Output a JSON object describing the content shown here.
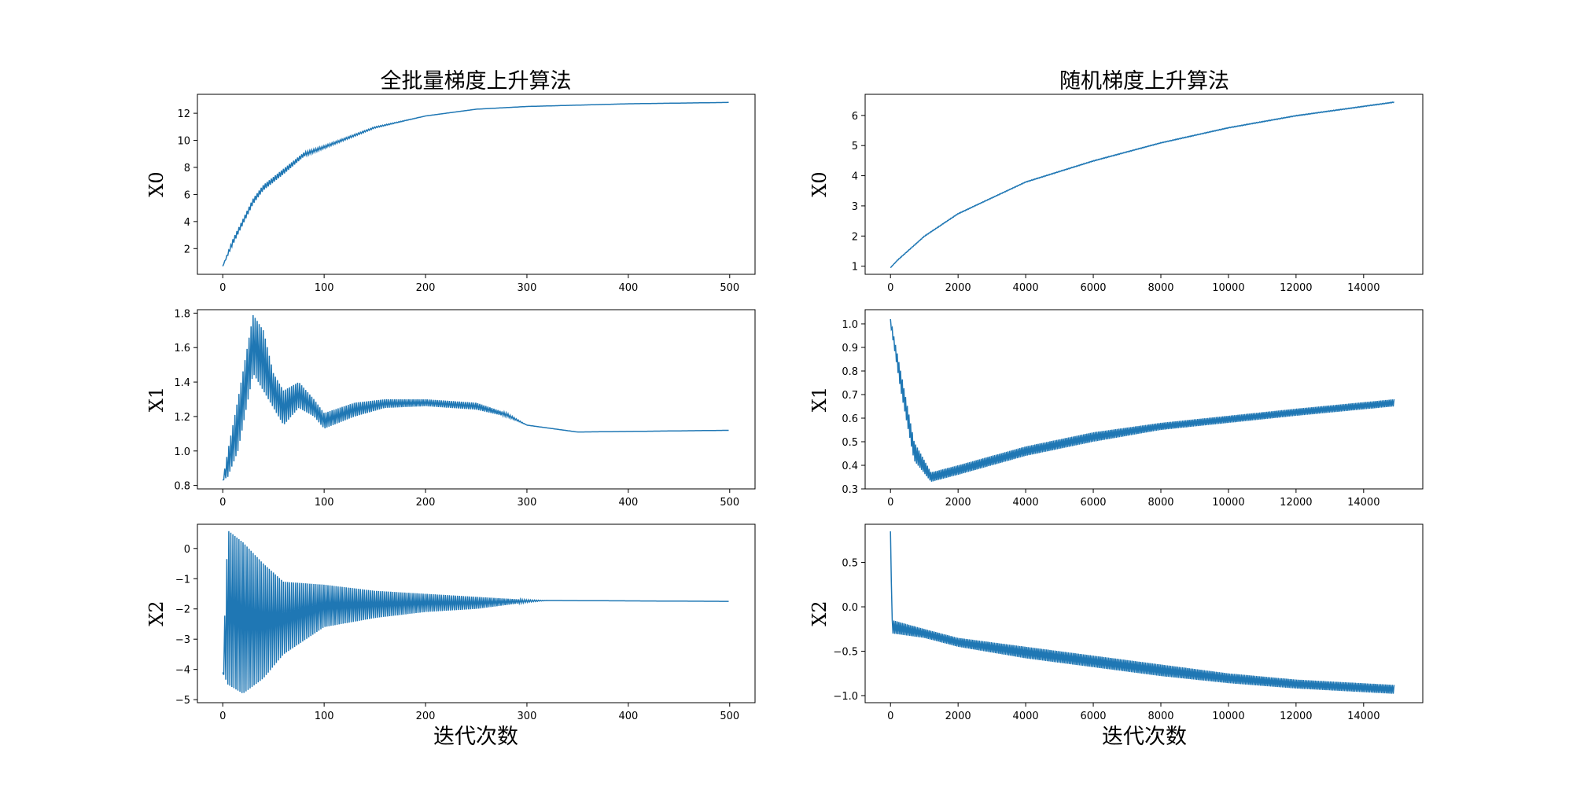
{
  "chart_data": [
    {
      "type": "line",
      "title": "全批量梯度上升算法",
      "ylabel": "X0",
      "xlabel": "",
      "xlim": [
        -25,
        525
      ],
      "ylim": [
        0.1,
        13.4
      ],
      "xticks": [
        0,
        100,
        200,
        300,
        400,
        500
      ],
      "yticks": [
        2,
        4,
        6,
        8,
        10,
        12
      ],
      "ytick_labels": [
        "2",
        "4",
        "6",
        "8",
        "10",
        "12"
      ],
      "color": "#1f77b4",
      "oscillations": 250,
      "x": [
        0,
        10,
        20,
        30,
        40,
        60,
        80,
        100,
        150,
        200,
        250,
        300,
        400,
        499
      ],
      "upper": [
        0.7,
        2.7,
        4.2,
        5.7,
        6.7,
        7.9,
        9.1,
        9.6,
        11.0,
        11.8,
        12.3,
        12.5,
        12.7,
        12.8
      ],
      "lower": [
        0.7,
        2.3,
        3.8,
        5.3,
        6.3,
        7.5,
        8.8,
        9.4,
        10.9,
        11.8,
        12.3,
        12.5,
        12.7,
        12.8
      ]
    },
    {
      "type": "line",
      "title": "随机梯度上升算法",
      "ylabel": "X0",
      "xlabel": "",
      "xlim": [
        -750,
        15750
      ],
      "ylim": [
        0.73,
        6.7
      ],
      "xticks": [
        0,
        2000,
        4000,
        6000,
        8000,
        10000,
        12000,
        14000
      ],
      "yticks": [
        1,
        2,
        3,
        4,
        5,
        6
      ],
      "ytick_labels": [
        "1",
        "2",
        "3",
        "4",
        "5",
        "6"
      ],
      "color": "#1f77b4",
      "oscillations": 300,
      "x": [
        0,
        200,
        1000,
        2000,
        4000,
        6000,
        8000,
        10000,
        12000,
        14900
      ],
      "upper": [
        0.95,
        1.2,
        2.0,
        2.75,
        3.8,
        4.5,
        5.1,
        5.6,
        6.0,
        6.45
      ],
      "lower": [
        0.95,
        1.18,
        1.98,
        2.73,
        3.78,
        4.48,
        5.08,
        5.58,
        5.98,
        6.43
      ]
    },
    {
      "type": "line",
      "title": "",
      "ylabel": "X1",
      "xlabel": "",
      "xlim": [
        -25,
        525
      ],
      "ylim": [
        0.78,
        1.82
      ],
      "xticks": [
        0,
        100,
        200,
        300,
        400,
        500
      ],
      "yticks": [
        0.8,
        1.0,
        1.2,
        1.4,
        1.6,
        1.8
      ],
      "ytick_labels": [
        "0.8",
        "1.0",
        "1.2",
        "1.4",
        "1.6",
        "1.8"
      ],
      "color": "#1f77b4",
      "oscillations": 250,
      "x": [
        0,
        5,
        15,
        30,
        40,
        50,
        60,
        75,
        90,
        100,
        130,
        160,
        200,
        250,
        280,
        300,
        350,
        499
      ],
      "upper": [
        0.83,
        1.0,
        1.3,
        1.79,
        1.7,
        1.45,
        1.35,
        1.4,
        1.3,
        1.22,
        1.28,
        1.3,
        1.3,
        1.28,
        1.22,
        1.15,
        1.11,
        1.12
      ],
      "lower": [
        0.83,
        0.85,
        1.0,
        1.45,
        1.35,
        1.25,
        1.15,
        1.25,
        1.2,
        1.13,
        1.2,
        1.25,
        1.26,
        1.24,
        1.2,
        1.15,
        1.11,
        1.12
      ]
    },
    {
      "type": "line",
      "title": "",
      "ylabel": "X1",
      "xlabel": "",
      "xlim": [
        -750,
        15750
      ],
      "ylim": [
        0.3,
        1.06
      ],
      "xticks": [
        0,
        2000,
        4000,
        6000,
        8000,
        10000,
        12000,
        14000
      ],
      "yticks": [
        0.3,
        0.4,
        0.5,
        0.6,
        0.7,
        0.8,
        0.9,
        1.0
      ],
      "ytick_labels": [
        "0.3",
        "0.4",
        "0.5",
        "0.6",
        "0.7",
        "0.8",
        "0.9",
        "1.0"
      ],
      "color": "#1f77b4",
      "oscillations": 300,
      "x": [
        0,
        300,
        700,
        1200,
        2000,
        4000,
        6000,
        8000,
        10000,
        12000,
        14900
      ],
      "upper": [
        1.02,
        0.8,
        0.5,
        0.37,
        0.4,
        0.48,
        0.54,
        0.58,
        0.61,
        0.64,
        0.68
      ],
      "lower": [
        1.0,
        0.72,
        0.42,
        0.33,
        0.36,
        0.44,
        0.5,
        0.55,
        0.58,
        0.61,
        0.65
      ]
    },
    {
      "type": "line",
      "title": "",
      "ylabel": "X2",
      "xlabel": "迭代次数",
      "xlim": [
        -25,
        525
      ],
      "ylim": [
        -5.1,
        0.8
      ],
      "xticks": [
        0,
        100,
        200,
        300,
        400,
        500
      ],
      "yticks": [
        -5,
        -4,
        -3,
        -2,
        -1,
        0
      ],
      "ytick_labels": [
        "−5",
        "−4",
        "−3",
        "−2",
        "−1",
        "0"
      ],
      "color": "#1f77b4",
      "oscillations": 250,
      "x": [
        0,
        5,
        20,
        40,
        60,
        100,
        150,
        200,
        250,
        300,
        320,
        499
      ],
      "upper": [
        -4.1,
        0.6,
        0.2,
        -0.5,
        -1.1,
        -1.2,
        -1.4,
        -1.5,
        -1.6,
        -1.7,
        -1.72,
        -1.75
      ],
      "lower": [
        -4.1,
        -4.5,
        -4.8,
        -4.3,
        -3.5,
        -2.6,
        -2.3,
        -2.1,
        -2.0,
        -1.78,
        -1.72,
        -1.75
      ]
    },
    {
      "type": "line",
      "title": "",
      "ylabel": "X2",
      "xlabel": "迭代次数",
      "xlim": [
        -750,
        15750
      ],
      "ylim": [
        -1.08,
        0.93
      ],
      "xticks": [
        0,
        2000,
        4000,
        6000,
        8000,
        10000,
        12000,
        14000
      ],
      "yticks": [
        -1.0,
        -0.5,
        0.0,
        0.5
      ],
      "ytick_labels": [
        "−1.0",
        "−0.5",
        "0.0",
        "0.5"
      ],
      "color": "#1f77b4",
      "oscillations": 300,
      "x": [
        0,
        50,
        1000,
        2000,
        4000,
        6000,
        8000,
        10000,
        12000,
        14900
      ],
      "upper": [
        0.85,
        -0.15,
        -0.25,
        -0.35,
        -0.45,
        -0.55,
        -0.65,
        -0.75,
        -0.82,
        -0.88
      ],
      "lower": [
        0.85,
        -0.3,
        -0.35,
        -0.45,
        -0.58,
        -0.68,
        -0.78,
        -0.86,
        -0.92,
        -0.98
      ]
    }
  ]
}
